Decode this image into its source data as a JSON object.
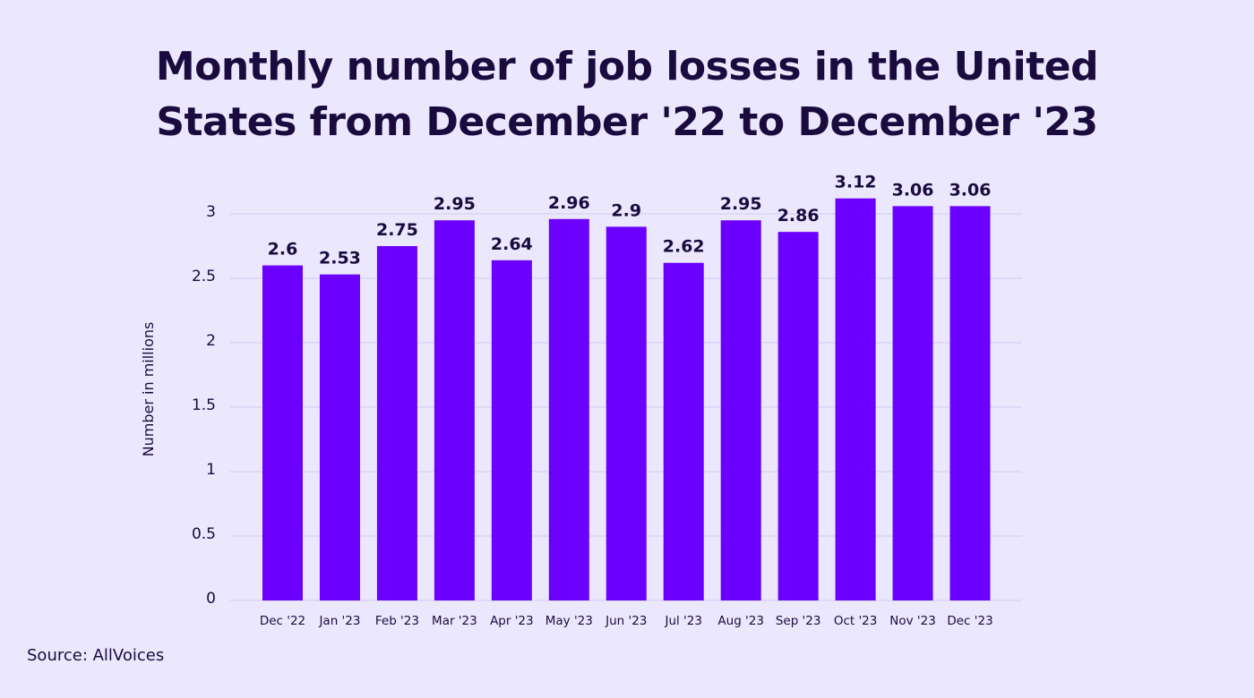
{
  "chart_data": {
    "type": "bar",
    "title_lines": [
      "Monthly number of job losses in the United",
      "States from December '22 to December '23"
    ],
    "categories": [
      "Dec '22",
      "Jan '23",
      "Feb '23",
      "Mar '23",
      "Apr '23",
      "May '23",
      "Jun '23",
      "Jul '23",
      "Aug '23",
      "Sep '23",
      "Oct '23",
      "Nov '23",
      "Dec '23"
    ],
    "values": [
      2.6,
      2.53,
      2.75,
      2.95,
      2.64,
      2.96,
      2.9,
      2.62,
      2.95,
      2.86,
      3.12,
      3.06,
      3.06
    ],
    "value_labels": [
      "2.6",
      "2.53",
      "2.75",
      "2.95",
      "2.64",
      "2.96",
      "2.9",
      "2.62",
      "2.95",
      "2.86",
      "3.12",
      "3.06",
      "3.06"
    ],
    "xlabel": "",
    "ylabel": "Number in millions",
    "ylim": [
      0,
      3
    ],
    "yticks": [
      "0",
      "0.5",
      "1",
      "1.5",
      "2",
      "2.5",
      "3"
    ],
    "grid": true,
    "bar_color": "#6b00ff",
    "text_color": "#1a0b3f"
  },
  "source": "Source: AllVoices"
}
